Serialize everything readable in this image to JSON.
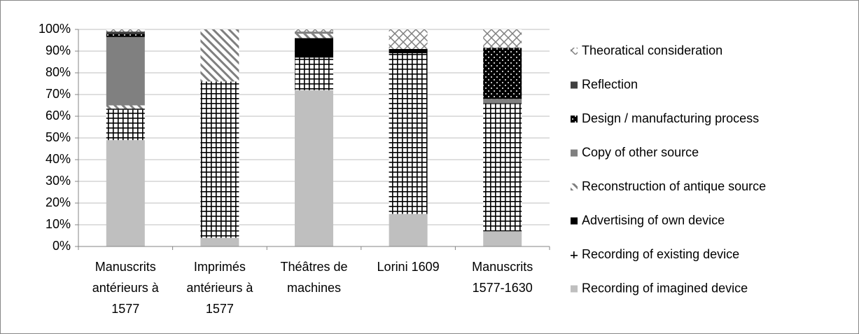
{
  "chart_data": {
    "type": "stacked_bar",
    "categories": [
      "Manuscrits antérieurs à 1577",
      "Imprimés antérieurs à 1577",
      "Théâtres de machines",
      "Lorini 1609",
      "Manuscrits 1577-1630"
    ],
    "series": [
      {
        "name": "Recording of imagined device",
        "color": "#bfbfbf",
        "values": [
          49,
          4,
          72,
          15,
          7
        ]
      },
      {
        "name": "Recording of existing device",
        "color": "#000000",
        "values": [
          14,
          72,
          15,
          74,
          59
        ]
      },
      {
        "name": "Advertising of own device",
        "color": "#000000",
        "values": [
          0.5,
          0,
          9,
          2,
          0
        ]
      },
      {
        "name": "Reconstruction of antique source",
        "color": "#7f7f7f",
        "values": [
          1.5,
          24,
          2,
          0,
          0
        ]
      },
      {
        "name": "Copy of other source",
        "color": "#808080",
        "values": [
          31.5,
          0,
          1,
          0,
          2
        ]
      },
      {
        "name": "Design / manufacturing process",
        "color": "#000000",
        "values": [
          1.5,
          0,
          0,
          0,
          23.5
        ]
      },
      {
        "name": "Reflection",
        "color": "#404040",
        "values": [
          1,
          0,
          0,
          0,
          0
        ]
      },
      {
        "name": "Theoratical consideration",
        "color": "#7f7f7f",
        "values": [
          1,
          0,
          1,
          9,
          8.5
        ]
      }
    ],
    "ylim": [
      0,
      100
    ],
    "yticks": [
      {
        "value": 0,
        "label": "0%"
      },
      {
        "value": 10,
        "label": "10%"
      },
      {
        "value": 20,
        "label": "20%"
      },
      {
        "value": 30,
        "label": "30%"
      },
      {
        "value": 40,
        "label": "40%"
      },
      {
        "value": 50,
        "label": "50%"
      },
      {
        "value": 60,
        "label": "60%"
      },
      {
        "value": 70,
        "label": "70%"
      },
      {
        "value": 80,
        "label": "80%"
      },
      {
        "value": 90,
        "label": "90%"
      },
      {
        "value": 100,
        "label": "100%"
      }
    ],
    "grid": true,
    "legend": "right"
  }
}
